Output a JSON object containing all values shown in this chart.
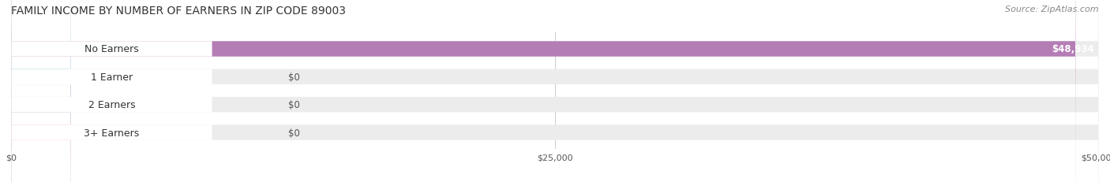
{
  "title": "FAMILY INCOME BY NUMBER OF EARNERS IN ZIP CODE 89003",
  "source": "Source: ZipAtlas.com",
  "categories": [
    "No Earners",
    "1 Earner",
    "2 Earners",
    "3+ Earners"
  ],
  "values": [
    48934,
    0,
    0,
    0
  ],
  "bar_colors": [
    "#b57db5",
    "#5ec8c0",
    "#a9a9d4",
    "#f4a0b0"
  ],
  "bar_bg_color": "#f0f0f0",
  "label_bg_color": "#ffffff",
  "xlim": [
    0,
    50000
  ],
  "xticks": [
    0,
    25000,
    50000
  ],
  "xtick_labels": [
    "$0",
    "$25,000",
    "$50,000"
  ],
  "value_labels": [
    "$48,934",
    "$0",
    "$0",
    "$0"
  ],
  "figsize": [
    14.06,
    2.32
  ],
  "dpi": 100,
  "background_color": "#ffffff",
  "title_fontsize": 10,
  "source_fontsize": 8,
  "label_fontsize": 9,
  "value_fontsize": 8.5
}
